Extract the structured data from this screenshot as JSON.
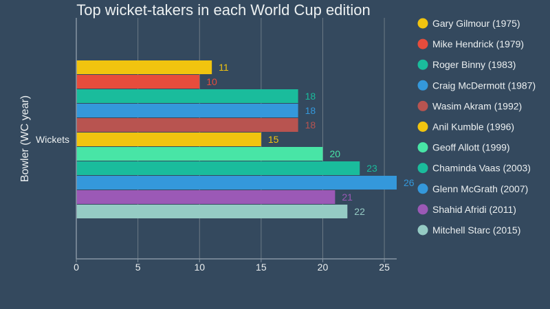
{
  "chart_data": {
    "type": "bar",
    "orientation": "horizontal",
    "title": "Top wicket-takers in each World Cup edition",
    "ylabel": "Bowler (WC year)",
    "xlabel": "",
    "categories": [
      "Wickets"
    ],
    "xlim": [
      0,
      26
    ],
    "xticks": [
      0,
      5,
      10,
      15,
      20,
      25
    ],
    "grid": true,
    "legend_position": "right",
    "series": [
      {
        "name": "Gary Gilmour (1975)",
        "values": [
          11
        ],
        "color": "#f1c40f"
      },
      {
        "name": "Mike Hendrick (1979)",
        "values": [
          10
        ],
        "color": "#e74c3c"
      },
      {
        "name": "Roger Binny (1983)",
        "values": [
          18
        ],
        "color": "#1abc9c"
      },
      {
        "name": "Craig McDermott (1987)",
        "values": [
          18
        ],
        "color": "#3498db"
      },
      {
        "name": "Wasim Akram (1992)",
        "values": [
          18
        ],
        "color": "#b85450"
      },
      {
        "name": "Anil Kumble (1996)",
        "values": [
          15
        ],
        "color": "#f1c40f"
      },
      {
        "name": "Geoff Allott (1999)",
        "values": [
          20
        ],
        "color": "#48e5a6"
      },
      {
        "name": "Chaminda Vaas (2003)",
        "values": [
          23
        ],
        "color": "#1abc9c"
      },
      {
        "name": "Glenn McGrath (2007)",
        "values": [
          26
        ],
        "color": "#3498db"
      },
      {
        "name": "Shahid Afridi (2011)",
        "values": [
          21
        ],
        "color": "#9b59b6"
      },
      {
        "name": "Mitchell Starc (2015)",
        "values": [
          22
        ],
        "color": "#95cbc4"
      }
    ]
  }
}
